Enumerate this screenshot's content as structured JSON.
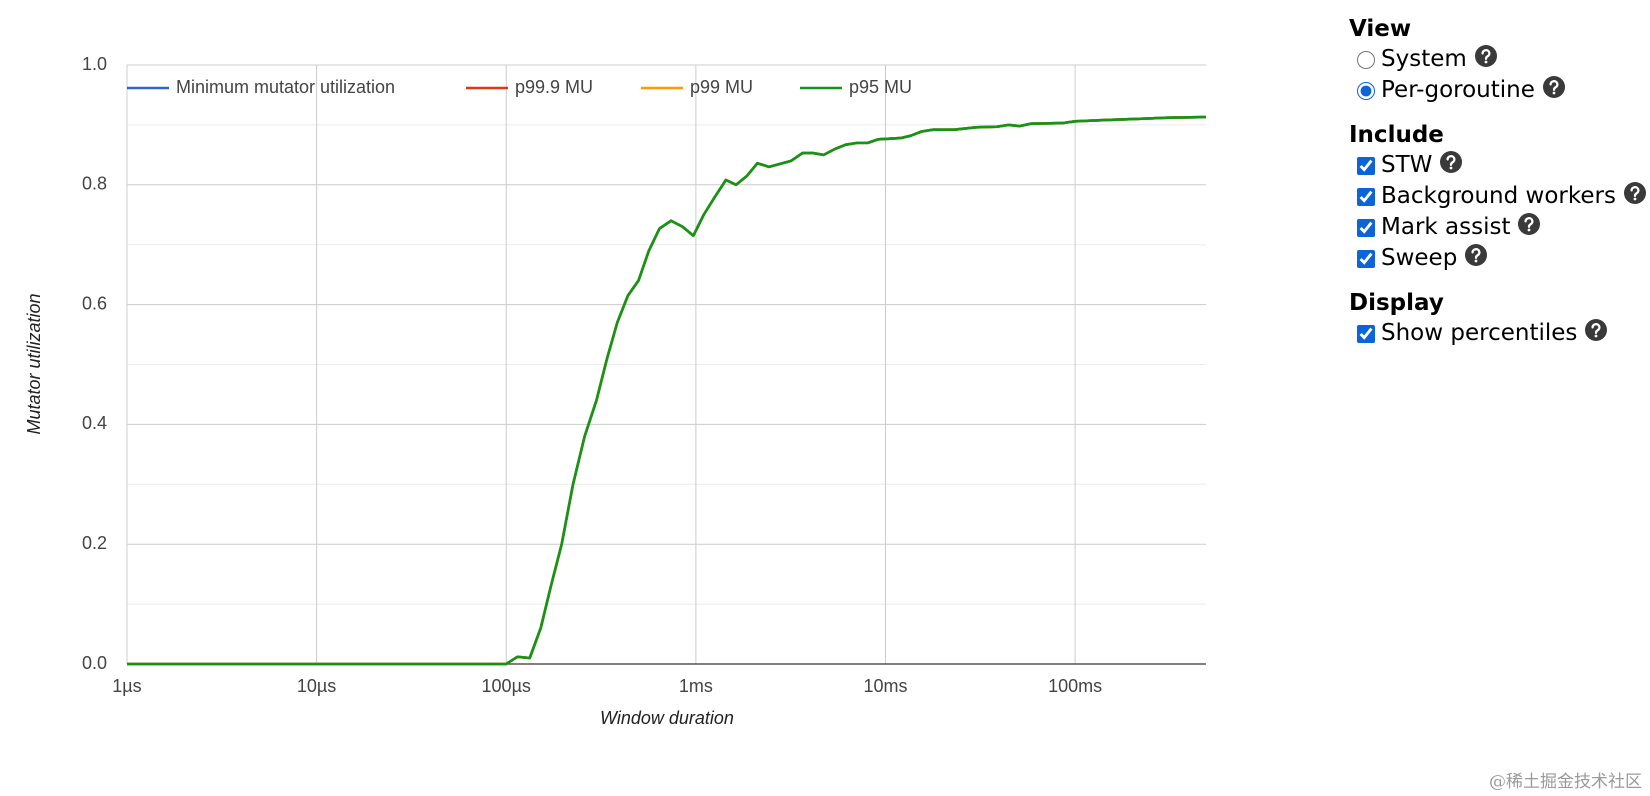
{
  "chart_data": {
    "type": "line",
    "x_label": "Window duration",
    "y_label": "Mutator utilization",
    "xscale": "log",
    "grid": true,
    "xlim": [
      1e-06,
      0.49
    ],
    "ylim": [
      0,
      1
    ],
    "xticks": [
      {
        "value": 1e-06,
        "label": "1µs"
      },
      {
        "value": 1e-05,
        "label": "10µs"
      },
      {
        "value": 0.0001,
        "label": "100µs"
      },
      {
        "value": 0.001,
        "label": "1ms"
      },
      {
        "value": 0.01,
        "label": "10ms"
      },
      {
        "value": 0.1,
        "label": "100ms"
      }
    ],
    "yticks": [
      {
        "value": 0,
        "label": "0.0"
      },
      0.2,
      0.4,
      0.6,
      0.8,
      {
        "value": 1,
        "label": "1.0"
      }
    ],
    "yminorticks": [
      0.1,
      0.3,
      0.5,
      0.7,
      0.9
    ],
    "legend": "top",
    "x": [
      1e-06,
      0.0001,
      0.0001145,
      0.000133,
      0.000152,
      0.000172,
      0.000196,
      0.000225,
      0.000259,
      0.000299,
      0.00034,
      0.000385,
      0.000438,
      0.000498,
      0.000565,
      0.000643,
      0.00074,
      0.000851,
      0.00097,
      0.0011,
      0.00126,
      0.00144,
      0.00163,
      0.00186,
      0.00211,
      0.00243,
      0.00318,
      0.00365,
      0.00415,
      0.00472,
      0.00543,
      0.00617,
      0.0071,
      0.00807,
      0.00917,
      0.012,
      0.0136,
      0.0155,
      0.0178,
      0.023,
      0.03,
      0.0388,
      0.0447,
      0.0508,
      0.0585,
      0.0857,
      0.1,
      0.143,
      0.21,
      0.308,
      0.49
    ],
    "series": [
      {
        "name": "Minimum mutator utilization",
        "color": "#3366cc",
        "values": [
          0,
          0,
          0.012,
          0.01,
          0.06,
          0.13,
          0.2,
          0.3,
          0.38,
          0.44,
          0.51,
          0.57,
          0.615,
          0.64,
          0.69,
          0.727,
          0.74,
          0.73,
          0.715,
          0.75,
          0.78,
          0.808,
          0.8,
          0.815,
          0.836,
          0.83,
          0.84,
          0.853,
          0.853,
          0.85,
          0.86,
          0.867,
          0.87,
          0.87,
          0.876,
          0.878,
          0.882,
          0.889,
          0.892,
          0.892,
          0.896,
          0.897,
          0.9,
          0.898,
          0.902,
          0.903,
          0.906,
          0.908,
          0.91,
          0.912,
          0.913
        ]
      },
      {
        "name": "p99.9 MU",
        "color": "#dc3912",
        "values": [
          0,
          0,
          0.012,
          0.01,
          0.06,
          0.13,
          0.2,
          0.3,
          0.38,
          0.44,
          0.51,
          0.57,
          0.615,
          0.64,
          0.69,
          0.727,
          0.74,
          0.73,
          0.715,
          0.75,
          0.78,
          0.808,
          0.8,
          0.815,
          0.836,
          0.83,
          0.84,
          0.853,
          0.853,
          0.85,
          0.86,
          0.867,
          0.87,
          0.87,
          0.876,
          0.878,
          0.882,
          0.889,
          0.892,
          0.892,
          0.896,
          0.897,
          0.9,
          0.898,
          0.902,
          0.903,
          0.906,
          0.908,
          0.91,
          0.912,
          0.913
        ]
      },
      {
        "name": "p99 MU",
        "color": "#ff9900",
        "values": [
          0,
          0,
          0.012,
          0.01,
          0.06,
          0.13,
          0.2,
          0.3,
          0.38,
          0.44,
          0.51,
          0.57,
          0.615,
          0.64,
          0.69,
          0.727,
          0.74,
          0.73,
          0.715,
          0.75,
          0.78,
          0.808,
          0.8,
          0.815,
          0.836,
          0.83,
          0.84,
          0.853,
          0.853,
          0.85,
          0.86,
          0.867,
          0.87,
          0.87,
          0.876,
          0.878,
          0.882,
          0.889,
          0.892,
          0.892,
          0.896,
          0.897,
          0.9,
          0.898,
          0.902,
          0.903,
          0.906,
          0.908,
          0.91,
          0.912,
          0.913
        ]
      },
      {
        "name": "p95 MU",
        "color": "#109618",
        "values": [
          0,
          0,
          0.012,
          0.01,
          0.06,
          0.13,
          0.2,
          0.3,
          0.38,
          0.44,
          0.51,
          0.57,
          0.615,
          0.64,
          0.69,
          0.727,
          0.74,
          0.73,
          0.715,
          0.75,
          0.78,
          0.808,
          0.8,
          0.815,
          0.836,
          0.83,
          0.84,
          0.853,
          0.853,
          0.85,
          0.86,
          0.867,
          0.87,
          0.87,
          0.876,
          0.878,
          0.882,
          0.889,
          0.892,
          0.892,
          0.896,
          0.897,
          0.9,
          0.898,
          0.902,
          0.903,
          0.906,
          0.908,
          0.91,
          0.912,
          0.913
        ]
      }
    ]
  },
  "panel": {
    "sections": [
      {
        "title": "View",
        "options": [
          {
            "label": "System",
            "input": "radio",
            "checked": false
          },
          {
            "label": "Per-goroutine",
            "input": "radio",
            "checked": true
          }
        ]
      },
      {
        "title": "Include",
        "options": [
          {
            "label": "STW",
            "input": "checkbox",
            "checked": true
          },
          {
            "label": "Background workers",
            "input": "checkbox",
            "checked": true
          },
          {
            "label": "Mark assist",
            "input": "checkbox",
            "checked": true
          },
          {
            "label": "Sweep",
            "input": "checkbox",
            "checked": true
          }
        ]
      },
      {
        "title": "Display",
        "options": [
          {
            "label": "Show percentiles",
            "input": "checkbox",
            "checked": true
          }
        ]
      }
    ]
  },
  "watermark": "@稀土掘金技术社区"
}
